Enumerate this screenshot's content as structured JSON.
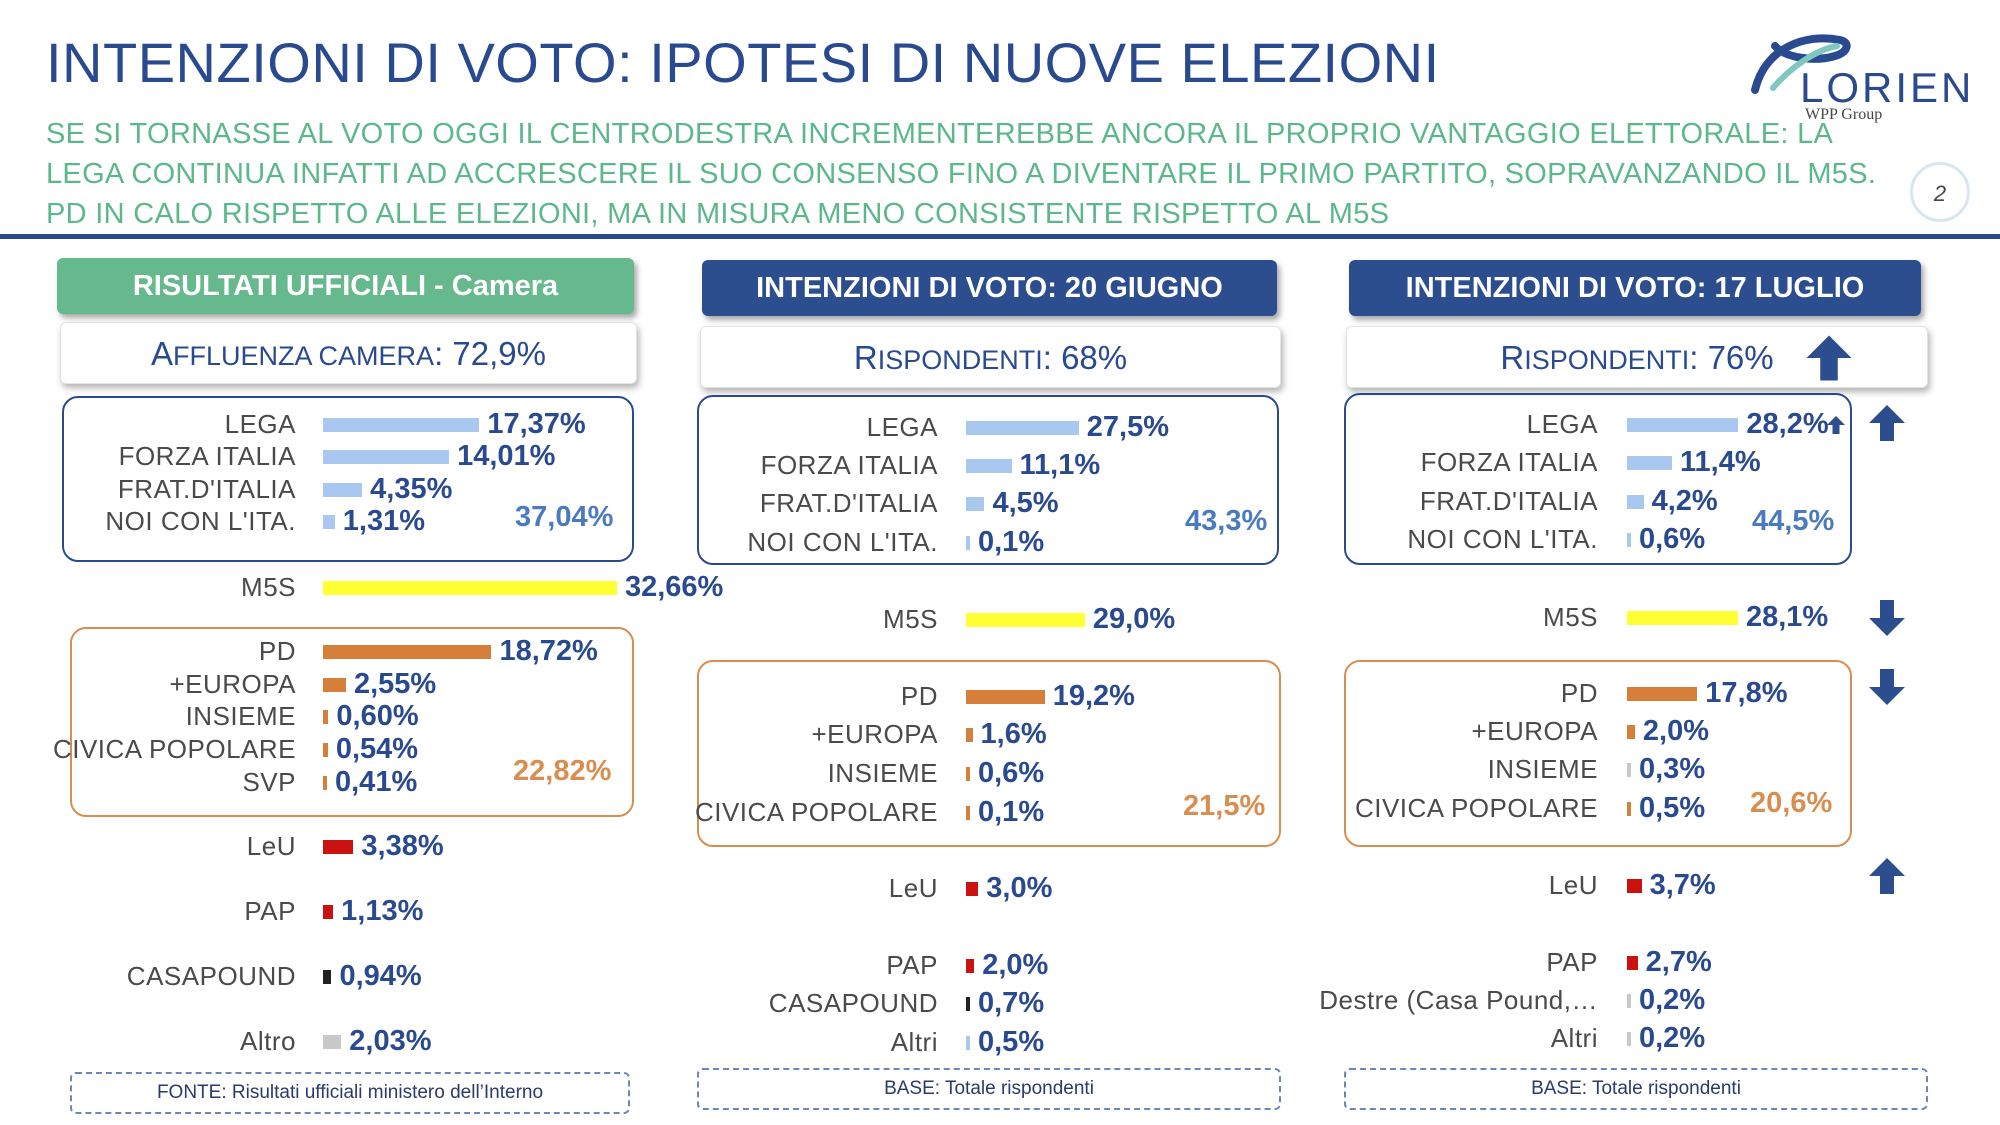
{
  "header": {
    "title": "INTENZIONI DI VOTO: IPOTESI DI NUOVE ELEZIONI",
    "subtitle": "SE SI TORNASSE AL VOTO OGGI IL CENTRODESTRA INCREMENTEREBBE ANCORA IL PROPRIO VANTAGGIO ELETTORALE: LA LEGA CONTINUA INFATTI AD ACCRESCERE IL SUO CONSENSO FINO A DIVENTARE IL PRIMO PARTITO, SOPRAVANZANDO IL M5S. PD IN CALO RISPETTO ALLE ELEZIONI, MA IN MISURA MENO CONSISTENTE RISPETTO AL M5S",
    "logo_text": "LORIEN",
    "logo_sub": "WPP Group",
    "page_number": "2"
  },
  "colors": {
    "title": "#2a4a8f",
    "subtitle": "#5cb88a",
    "header_green": "#66b98d",
    "header_blue": "#2c4d8e",
    "bar_lega": "#a9c8f0",
    "bar_m5s": "#ffff33",
    "bar_pd": "#d57f3a",
    "bar_red": "#cc1111",
    "bar_black": "#222222",
    "bar_gray": "#c8c8c8"
  },
  "chart_data": [
    {
      "type": "bar",
      "title": "RISULTATI UFFICIALI - Camera",
      "subheader": {
        "big": "A",
        "small": "FFLUENZA CAMERA",
        "rest": ": 72,9%"
      },
      "footer": "FONTE: Risultati ufficiali ministero dell’Interno",
      "series": [
        {
          "name": "LEGA",
          "value": 17.37,
          "label": "17,37%",
          "color": "bar_lega"
        },
        {
          "name": "FORZA ITALIA",
          "value": 14.01,
          "label": "14,01%",
          "color": "bar_lega"
        },
        {
          "name": "FRAT.D'ITALIA",
          "value": 4.35,
          "label": "4,35%",
          "color": "bar_lega"
        },
        {
          "name": "NOI CON L'ITA.",
          "value": 1.31,
          "label": "1,31%",
          "color": "bar_lega"
        },
        {
          "name": "M5S",
          "value": 32.66,
          "label": "32,66%",
          "color": "bar_m5s"
        },
        {
          "name": "PD",
          "value": 18.72,
          "label": "18,72%",
          "color": "bar_pd"
        },
        {
          "name": "+EUROPA",
          "value": 2.55,
          "label": "2,55%",
          "color": "bar_pd"
        },
        {
          "name": "INSIEME",
          "value": 0.6,
          "label": "0,60%",
          "color": "bar_pd"
        },
        {
          "name": "CIVICA POPOLARE",
          "value": 0.54,
          "label": "0,54%",
          "color": "bar_pd"
        },
        {
          "name": "SVP",
          "value": 0.41,
          "label": "0,41%",
          "color": "bar_pd"
        },
        {
          "name": "LeU",
          "value": 3.38,
          "label": "3,38%",
          "color": "bar_red"
        },
        {
          "name": "PAP",
          "value": 1.13,
          "label": "1,13%",
          "color": "bar_red"
        },
        {
          "name": "CASAPOUND",
          "value": 0.94,
          "label": "0,94%",
          "color": "bar_black"
        },
        {
          "name": "Altro",
          "value": 2.03,
          "label": "2,03%",
          "color": "bar_gray"
        }
      ],
      "totals": {
        "centrodestra": "37,04%",
        "centrosinistra": "22,82%"
      }
    },
    {
      "type": "bar",
      "title": "INTENZIONI DI VOTO: 20 GIUGNO",
      "subheader": {
        "big": "R",
        "small": "ISPONDENTI",
        "rest": ": 68%"
      },
      "footer": "BASE: Totale rispondenti",
      "series": [
        {
          "name": "LEGA",
          "value": 27.5,
          "label": "27,5%",
          "color": "bar_lega"
        },
        {
          "name": "FORZA ITALIA",
          "value": 11.1,
          "label": "11,1%",
          "color": "bar_lega"
        },
        {
          "name": "FRAT.D'ITALIA",
          "value": 4.5,
          "label": "4,5%",
          "color": "bar_lega"
        },
        {
          "name": "NOI CON L'ITA.",
          "value": 0.1,
          "label": "0,1%",
          "color": "bar_lega"
        },
        {
          "name": "M5S",
          "value": 29.0,
          "label": "29,0%",
          "color": "bar_m5s"
        },
        {
          "name": "PD",
          "value": 19.2,
          "label": "19,2%",
          "color": "bar_pd"
        },
        {
          "name": "+EUROPA",
          "value": 1.6,
          "label": "1,6%",
          "color": "bar_pd"
        },
        {
          "name": "INSIEME",
          "value": 0.6,
          "label": "0,6%",
          "color": "bar_pd"
        },
        {
          "name": "CIVICA POPOLARE",
          "value": 0.1,
          "label": "0,1%",
          "color": "bar_pd"
        },
        {
          "name": "LeU",
          "value": 3.0,
          "label": "3,0%",
          "color": "bar_red"
        },
        {
          "name": "PAP",
          "value": 2.0,
          "label": "2,0%",
          "color": "bar_red"
        },
        {
          "name": "CASAPOUND",
          "value": 0.7,
          "label": "0,7%",
          "color": "bar_black"
        },
        {
          "name": "Altri",
          "value": 0.5,
          "label": "0,5%",
          "color": "bar_lega"
        }
      ],
      "totals": {
        "centrodestra": "43,3%",
        "centrosinistra": "21,5%"
      }
    },
    {
      "type": "bar",
      "title": "INTENZIONI DI VOTO: 17 LUGLIO",
      "subheader": {
        "big": "R",
        "small": "ISPONDENTI",
        "rest": ": 76%"
      },
      "footer": "BASE: Totale rispondenti",
      "series": [
        {
          "name": "LEGA",
          "value": 28.2,
          "label": "28,2%",
          "color": "bar_lega"
        },
        {
          "name": "FORZA ITALIA",
          "value": 11.4,
          "label": "11,4%",
          "color": "bar_lega"
        },
        {
          "name": "FRAT.D'ITALIA",
          "value": 4.2,
          "label": "4,2%",
          "color": "bar_lega"
        },
        {
          "name": "NOI CON L'ITA.",
          "value": 0.6,
          "label": "0,6%",
          "color": "bar_lega"
        },
        {
          "name": "M5S",
          "value": 28.1,
          "label": "28,1%",
          "color": "bar_m5s"
        },
        {
          "name": "PD",
          "value": 17.8,
          "label": "17,8%",
          "color": "bar_pd"
        },
        {
          "name": "+EUROPA",
          "value": 2.0,
          "label": "2,0%",
          "color": "bar_pd"
        },
        {
          "name": "INSIEME",
          "value": 0.3,
          "label": "0,3%",
          "color": "bar_gray"
        },
        {
          "name": "CIVICA POPOLARE",
          "value": 0.5,
          "label": "0,5%",
          "color": "bar_pd"
        },
        {
          "name": "LeU",
          "value": 3.7,
          "label": "3,7%",
          "color": "bar_red"
        },
        {
          "name": "PAP",
          "value": 2.7,
          "label": "2,7%",
          "color": "bar_red"
        },
        {
          "name": "Destre (Casa Pound,…",
          "value": 0.2,
          "label": "0,2%",
          "color": "bar_gray"
        },
        {
          "name": "Altri",
          "value": 0.2,
          "label": "0,2%",
          "color": "bar_gray"
        }
      ],
      "totals": {
        "centrodestra": "44,5%",
        "centrosinistra": "20,6%"
      },
      "trend_arrows": [
        {
          "target": "RISPONDENTI",
          "direction": "up"
        },
        {
          "target": "LEGA",
          "direction": "up"
        },
        {
          "target": "M5S",
          "direction": "down"
        },
        {
          "target": "PD",
          "direction": "down"
        },
        {
          "target": "LeU",
          "direction": "up"
        }
      ]
    }
  ]
}
